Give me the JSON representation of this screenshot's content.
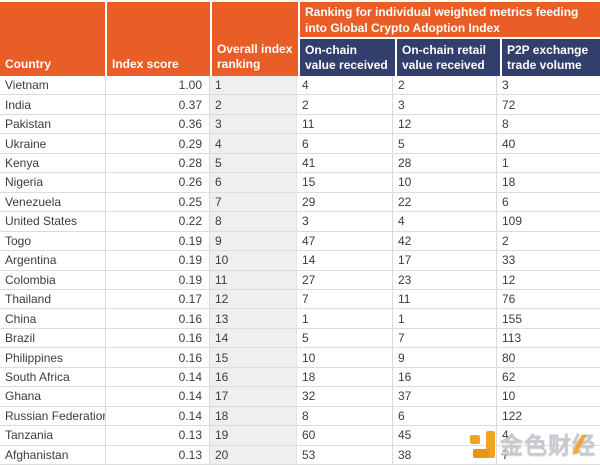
{
  "chart_data": {
    "type": "table",
    "banner": "Ranking for individual weighted metrics feeding into Global Crypto Adoption Index",
    "columns": [
      "Country",
      "Index score",
      "Overall index ranking",
      "On-chain value received",
      "On-chain retail value received",
      "P2P exchange trade volume"
    ],
    "rows": [
      [
        "Vietnam",
        "1.00",
        1,
        4,
        2,
        3
      ],
      [
        "India",
        "0.37",
        2,
        2,
        3,
        72
      ],
      [
        "Pakistan",
        "0.36",
        3,
        11,
        12,
        8
      ],
      [
        "Ukraine",
        "0.29",
        4,
        6,
        5,
        40
      ],
      [
        "Kenya",
        "0.28",
        5,
        41,
        28,
        1
      ],
      [
        "Nigeria",
        "0.26",
        6,
        15,
        10,
        18
      ],
      [
        "Venezuela",
        "0.25",
        7,
        29,
        22,
        6
      ],
      [
        "United States",
        "0.22",
        8,
        3,
        4,
        109
      ],
      [
        "Togo",
        "0.19",
        9,
        47,
        42,
        2
      ],
      [
        "Argentina",
        "0.19",
        10,
        14,
        17,
        33
      ],
      [
        "Colombia",
        "0.19",
        11,
        27,
        23,
        12
      ],
      [
        "Thailand",
        "0.17",
        12,
        7,
        11,
        76
      ],
      [
        "China",
        "0.16",
        13,
        1,
        1,
        155
      ],
      [
        "Brazil",
        "0.16",
        14,
        5,
        7,
        113
      ],
      [
        "Philippines",
        "0.16",
        15,
        10,
        9,
        80
      ],
      [
        "South Africa",
        "0.14",
        16,
        18,
        16,
        62
      ],
      [
        "Ghana",
        "0.14",
        17,
        32,
        37,
        10
      ],
      [
        "Russian Federation",
        "0.14",
        18,
        8,
        6,
        122
      ],
      [
        "Tanzania",
        "0.13",
        19,
        60,
        45,
        4
      ],
      [
        "Afghanistan",
        "0.13",
        20,
        53,
        38,
        7
      ]
    ]
  },
  "watermark": {
    "text": "金色财经",
    "text_color": "#C8C8D0",
    "logo_color": "#F4A31D"
  },
  "colors": {
    "header_orange": "#E95D26",
    "header_navy": "#323E6C",
    "header_text": "#FFFFFF",
    "grid_line": "#D9D9D9",
    "rank_column_bg": "#EFEFEF",
    "body_text": "#3C3C3C"
  }
}
